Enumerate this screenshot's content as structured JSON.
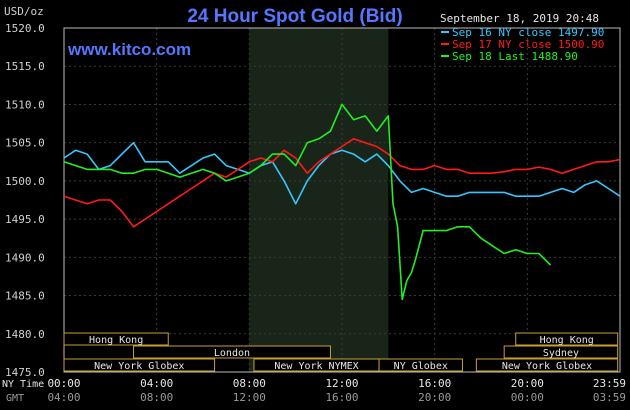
{
  "chart_data": {
    "type": "line",
    "title": "24 Hour Spot Gold (Bid)",
    "website": "www.kitco.com",
    "ylabel": "USD/oz",
    "timestamp": "September 18, 2019 20:48",
    "ylim": [
      1475,
      1520
    ],
    "y_ticks": [
      "1520.0",
      "1515.0",
      "1510.0",
      "1505.0",
      "1500.0",
      "1495.0",
      "1490.0",
      "1485.0",
      "1480.0",
      "1475.0"
    ],
    "x_ticks_ny": [
      "00:00",
      "04:00",
      "08:00",
      "12:00",
      "16:00",
      "20:00",
      "23:59"
    ],
    "x_ticks_gmt": [
      "04:00",
      "08:00",
      "12:00",
      "16:00",
      "20:00",
      "00:00",
      "03:59"
    ],
    "x_row_labels": {
      "ny": "NY Time",
      "gmt": "GMT"
    },
    "grid": true,
    "legend_position": "top-right",
    "colors": {
      "sep16": "#33c8ff",
      "sep17": "#ff1a1a",
      "sep18": "#22ee22",
      "shade": "#1a2a1a",
      "axis": "#c8c8c8",
      "session_border": "#c9a030",
      "title": "#5577ff"
    },
    "series": [
      {
        "name": "Sep 16 NY close 1497.90",
        "hours": [
          0,
          0.5,
          1,
          1.5,
          2,
          2.5,
          3,
          3.5,
          4,
          4.5,
          5,
          5.5,
          6,
          6.5,
          7,
          7.5,
          8,
          8.5,
          9,
          9.5,
          10,
          10.5,
          11,
          11.5,
          12,
          12.5,
          13,
          13.5,
          14,
          14.5,
          15,
          15.5,
          16,
          16.5,
          17,
          17.5,
          18,
          18.5,
          19,
          19.5,
          20,
          20.5,
          21,
          21.5,
          22,
          22.5,
          23,
          23.5,
          24
        ],
        "values": [
          1503,
          1504,
          1503.5,
          1501.5,
          1502,
          1503.5,
          1505,
          1502.5,
          1502.5,
          1502.5,
          1501,
          1502,
          1503,
          1503.5,
          1502,
          1501.5,
          1501,
          1502,
          1502.5,
          1500,
          1497,
          1500,
          1502,
          1503.5,
          1504,
          1503.5,
          1502.5,
          1503.5,
          1502,
          1500,
          1498.5,
          1499,
          1498.5,
          1498,
          1498,
          1498.5,
          1498.5,
          1498.5,
          1498.5,
          1498,
          1498,
          1498,
          1498.5,
          1499,
          1498.5,
          1499.5,
          1500,
          1499,
          1498
        ]
      },
      {
        "name": "Sep 17 NY close 1500.90",
        "hours": [
          0,
          0.5,
          1,
          1.5,
          2,
          2.5,
          3,
          3.5,
          4,
          4.5,
          5,
          5.5,
          6,
          6.5,
          7,
          7.5,
          8,
          8.5,
          9,
          9.5,
          10,
          10.5,
          11,
          11.5,
          12,
          12.5,
          13,
          13.5,
          14,
          14.5,
          15,
          15.5,
          16,
          16.5,
          17,
          17.5,
          18,
          18.5,
          19,
          19.5,
          20,
          20.5,
          21,
          21.5,
          22,
          22.5,
          23,
          23.5,
          24
        ],
        "values": [
          1498,
          1497.5,
          1497,
          1497.5,
          1497.5,
          1496,
          1494,
          1495,
          1496,
          1497,
          1498,
          1499,
          1500,
          1501,
          1500.5,
          1501.5,
          1502.5,
          1503,
          1502.5,
          1504,
          1503,
          1501,
          1502.5,
          1503.5,
          1504.5,
          1505.5,
          1505,
          1504.5,
          1503.5,
          1502,
          1501.5,
          1501.5,
          1502,
          1501.5,
          1501.5,
          1501,
          1501,
          1501,
          1501.2,
          1501.5,
          1501.5,
          1501.8,
          1501.5,
          1501,
          1501.5,
          1502,
          1502.5,
          1502.5,
          1502.8
        ]
      },
      {
        "name": "Sep 18 Last 1488.90",
        "hours": [
          0,
          0.5,
          1,
          1.5,
          2,
          2.5,
          3,
          3.5,
          4,
          4.5,
          5,
          5.5,
          6,
          6.5,
          7,
          7.5,
          8,
          8.5,
          9,
          9.5,
          10,
          10.5,
          11,
          11.5,
          12,
          12.5,
          13,
          13.5,
          14,
          14.2,
          14.4,
          14.6,
          14.8,
          15,
          15.2,
          15.5,
          16,
          16.5,
          17,
          17.5,
          18,
          18.5,
          19,
          19.5,
          20,
          20.5,
          21
        ],
        "values": [
          1502.5,
          1502,
          1501.5,
          1501.5,
          1501.5,
          1501,
          1501,
          1501.5,
          1501.5,
          1501,
          1500.5,
          1501,
          1501.5,
          1501,
          1500,
          1500.5,
          1501,
          1502,
          1503.5,
          1503.5,
          1502,
          1505,
          1505.5,
          1506.5,
          1510,
          1508,
          1508.5,
          1506.5,
          1508.5,
          1497,
          1494,
          1484.5,
          1487,
          1488,
          1490,
          1493.5,
          1493.5,
          1493.5,
          1494,
          1494,
          1492.5,
          1491.5,
          1490.5,
          1491,
          1490.5,
          1490.5,
          1489
        ]
      }
    ],
    "shaded_region_hours": [
      8,
      14
    ],
    "sessions_row1": [
      {
        "name": "Hong Kong",
        "start_hour": 0,
        "end_hour": 4.5
      },
      {
        "name": "Hong Kong",
        "start_hour": 19.5,
        "end_hour": 23.9
      }
    ],
    "sessions_row2": [
      {
        "name": "London",
        "start_hour": 3,
        "end_hour": 11.5
      },
      {
        "name": "Sydney",
        "start_hour": 19,
        "end_hour": 23.9
      }
    ],
    "sessions_row3": [
      {
        "name": "New York Globex",
        "start_hour": 0,
        "end_hour": 6.5
      },
      {
        "name": "New York NYMEX",
        "start_hour": 8.2,
        "end_hour": 13.6
      },
      {
        "name": "NY Globex",
        "start_hour": 13.6,
        "end_hour": 17.2
      },
      {
        "name": "New York Globex",
        "start_hour": 17.8,
        "end_hour": 23.9
      }
    ]
  }
}
